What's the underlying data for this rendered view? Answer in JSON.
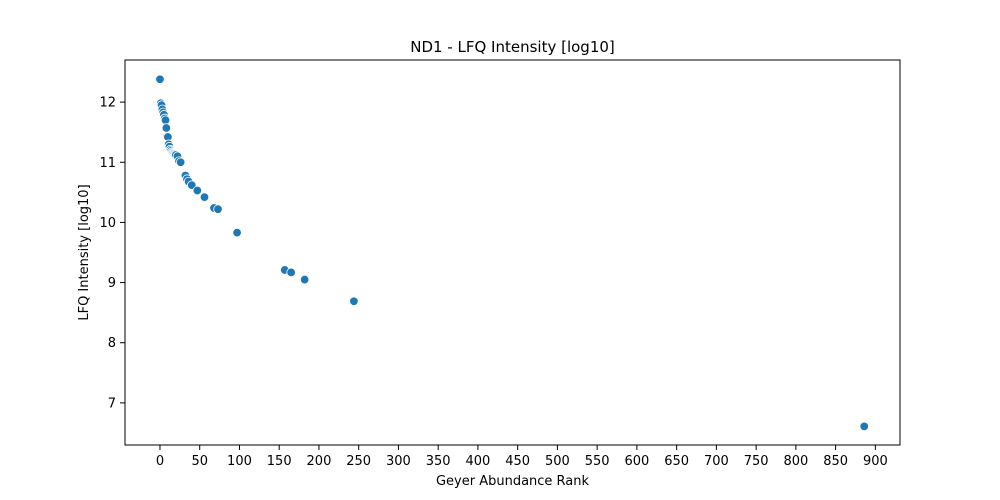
{
  "chart_data": {
    "type": "scatter",
    "title": "ND1 - LFQ Intensity [log10]",
    "xlabel": "Geyer Abundance Rank",
    "ylabel": "LFQ Intensity [log10]",
    "xlim": [
      -44,
      931
    ],
    "ylim": [
      6.3,
      12.7
    ],
    "xticks": [
      0,
      50,
      100,
      150,
      200,
      250,
      300,
      350,
      400,
      450,
      500,
      550,
      600,
      650,
      700,
      750,
      800,
      850,
      900
    ],
    "yticks": [
      7,
      8,
      9,
      10,
      11,
      12
    ],
    "grid": false,
    "color": "#1f77b4",
    "points": [
      {
        "x": 0,
        "y": 12.38
      },
      {
        "x": 1,
        "y": 11.98
      },
      {
        "x": 2,
        "y": 11.95
      },
      {
        "x": 3,
        "y": 11.88
      },
      {
        "x": 4,
        "y": 11.83
      },
      {
        "x": 5,
        "y": 11.79
      },
      {
        "x": 6,
        "y": 11.73
      },
      {
        "x": 7,
        "y": 11.7
      },
      {
        "x": 8,
        "y": 11.57
      },
      {
        "x": 9,
        "y": 11.43
      },
      {
        "x": 10,
        "y": 11.42
      },
      {
        "x": 11,
        "y": 11.3
      },
      {
        "x": 12,
        "y": 11.26
      },
      {
        "x": 13,
        "y": 11.21
      },
      {
        "x": 14,
        "y": 11.19
      },
      {
        "x": 15,
        "y": 11.17
      },
      {
        "x": 16,
        "y": 11.16
      },
      {
        "x": 17,
        "y": 11.15
      },
      {
        "x": 18,
        "y": 11.14
      },
      {
        "x": 19,
        "y": 11.13
      },
      {
        "x": 20,
        "y": 11.12
      },
      {
        "x": 22,
        "y": 11.1
      },
      {
        "x": 24,
        "y": 11.02
      },
      {
        "x": 26,
        "y": 11.0
      },
      {
        "x": 32,
        "y": 10.78
      },
      {
        "x": 34,
        "y": 10.72
      },
      {
        "x": 36,
        "y": 10.68
      },
      {
        "x": 40,
        "y": 10.62
      },
      {
        "x": 47,
        "y": 10.53
      },
      {
        "x": 56,
        "y": 10.42
      },
      {
        "x": 68,
        "y": 10.24
      },
      {
        "x": 73,
        "y": 10.22
      },
      {
        "x": 97,
        "y": 9.83
      },
      {
        "x": 157,
        "y": 9.21
      },
      {
        "x": 165,
        "y": 9.17
      },
      {
        "x": 182,
        "y": 9.05
      },
      {
        "x": 244,
        "y": 8.69
      },
      {
        "x": 886,
        "y": 6.61
      }
    ]
  }
}
